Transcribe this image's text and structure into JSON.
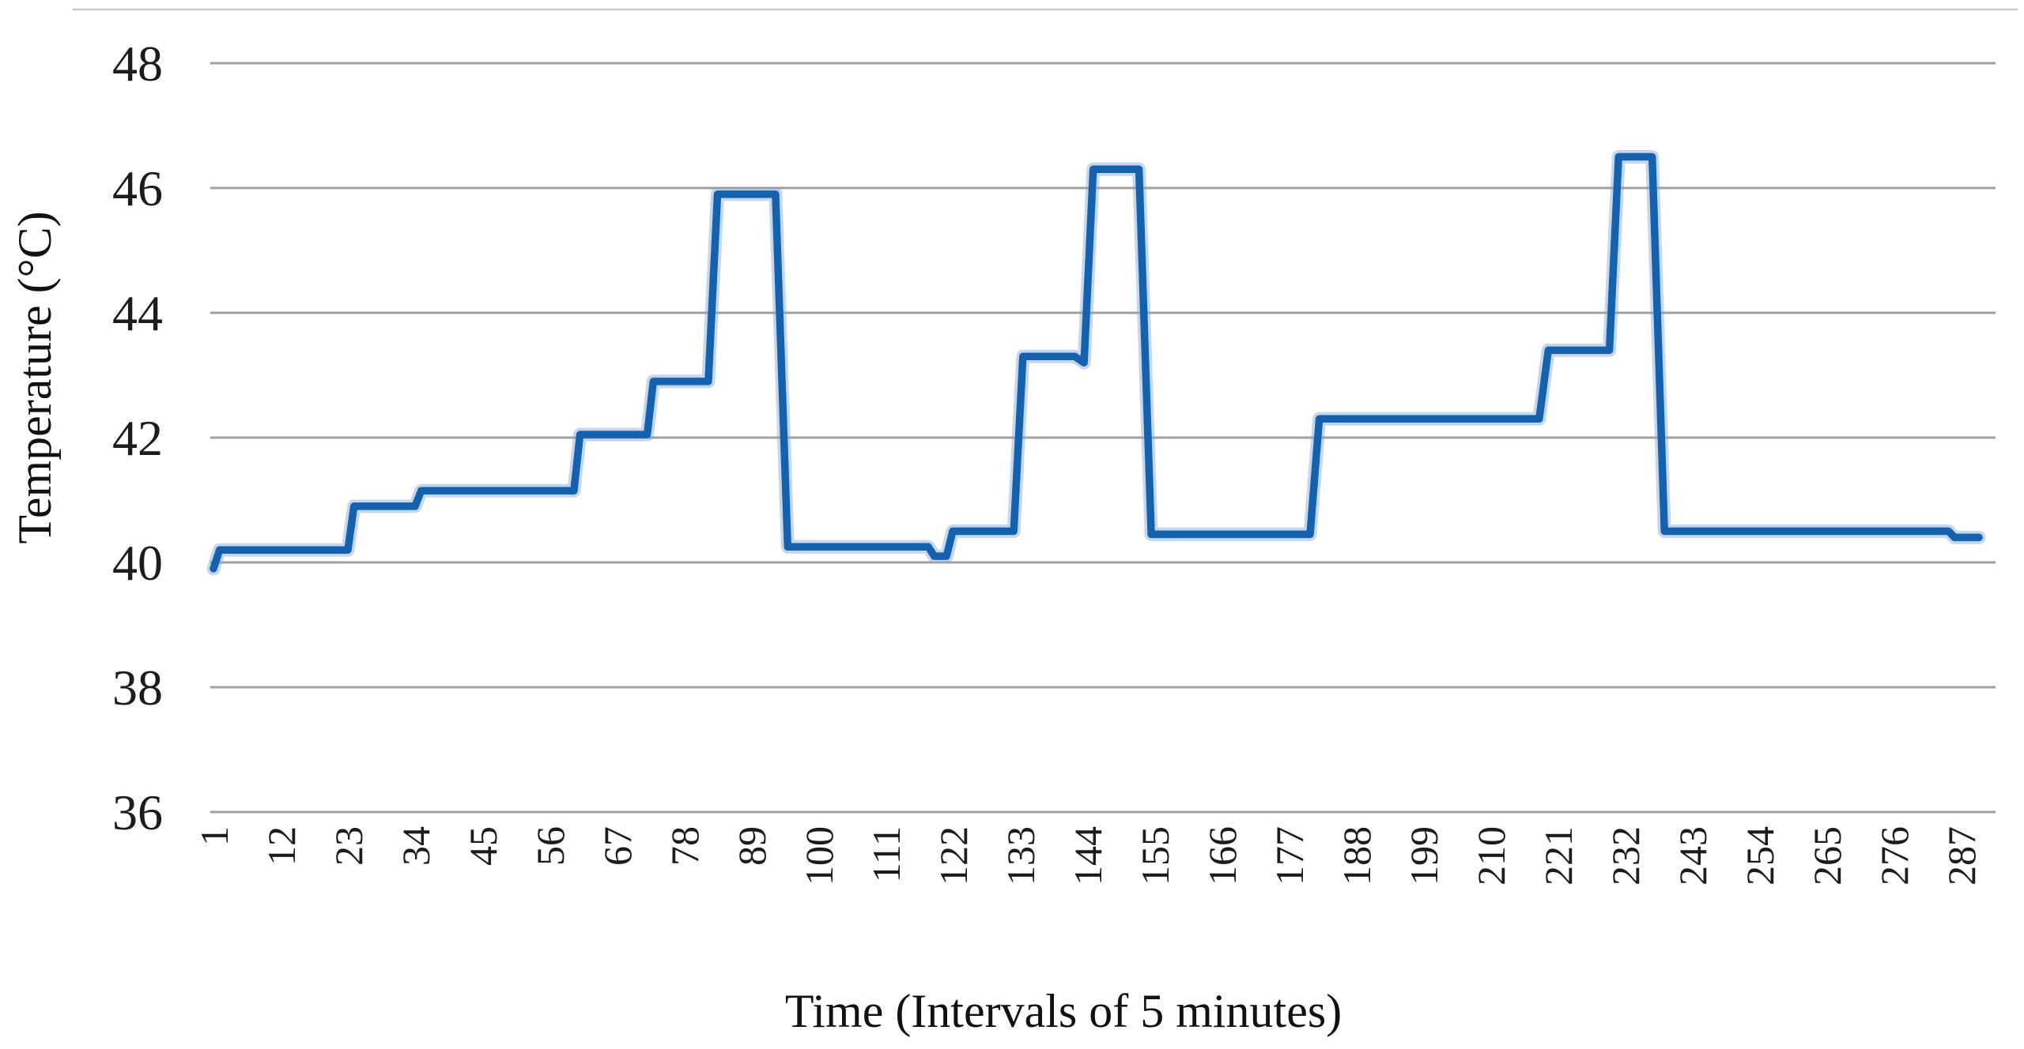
{
  "chart_data": {
    "type": "line",
    "subtype": "step",
    "title": "",
    "xlabel": "Time (Intervals of 5 minutes)",
    "ylabel": "Temperature (°C)",
    "ylim": [
      36,
      48
    ],
    "xlim": [
      1,
      293
    ],
    "grid": true,
    "legend": "none",
    "y_ticks": [
      48,
      46,
      44,
      42,
      40,
      38,
      36
    ],
    "x_ticks": [
      1,
      12,
      23,
      34,
      45,
      56,
      67,
      78,
      89,
      100,
      111,
      122,
      133,
      144,
      155,
      166,
      177,
      188,
      199,
      210,
      221,
      232,
      243,
      254,
      265,
      276,
      287
    ],
    "colors": {
      "line": "#1661ad",
      "line_halo": "#7da7d9",
      "gridline": "#a0a0a0",
      "border": "#c9c9c9",
      "text": "#1c1c1c"
    },
    "series": [
      {
        "name": "Temperature",
        "points": [
          [
            1,
            39.9
          ],
          [
            2,
            40.2
          ],
          [
            23,
            40.2
          ],
          [
            24,
            40.9
          ],
          [
            34,
            40.9
          ],
          [
            35,
            41.15
          ],
          [
            60,
            41.15
          ],
          [
            61,
            42.05
          ],
          [
            72,
            42.05
          ],
          [
            73,
            42.9
          ],
          [
            82,
            42.9
          ],
          [
            83.5,
            45.9
          ],
          [
            93,
            45.9
          ],
          [
            95,
            40.25
          ],
          [
            118,
            40.25
          ],
          [
            119,
            40.1
          ],
          [
            121,
            40.1
          ],
          [
            122,
            40.5
          ],
          [
            132,
            40.5
          ],
          [
            133.5,
            43.3
          ],
          [
            142,
            43.3
          ],
          [
            143.5,
            43.2
          ],
          [
            145,
            46.3
          ],
          [
            152.5,
            46.3
          ],
          [
            154.5,
            40.45
          ],
          [
            180.5,
            40.45
          ],
          [
            182,
            42.3
          ],
          [
            218,
            42.3
          ],
          [
            219.5,
            43.4
          ],
          [
            229.5,
            43.4
          ],
          [
            231,
            46.5
          ],
          [
            236.5,
            46.5
          ],
          [
            238.5,
            40.5
          ],
          [
            285,
            40.5
          ],
          [
            286,
            40.4
          ],
          [
            290,
            40.4
          ]
        ]
      }
    ]
  }
}
